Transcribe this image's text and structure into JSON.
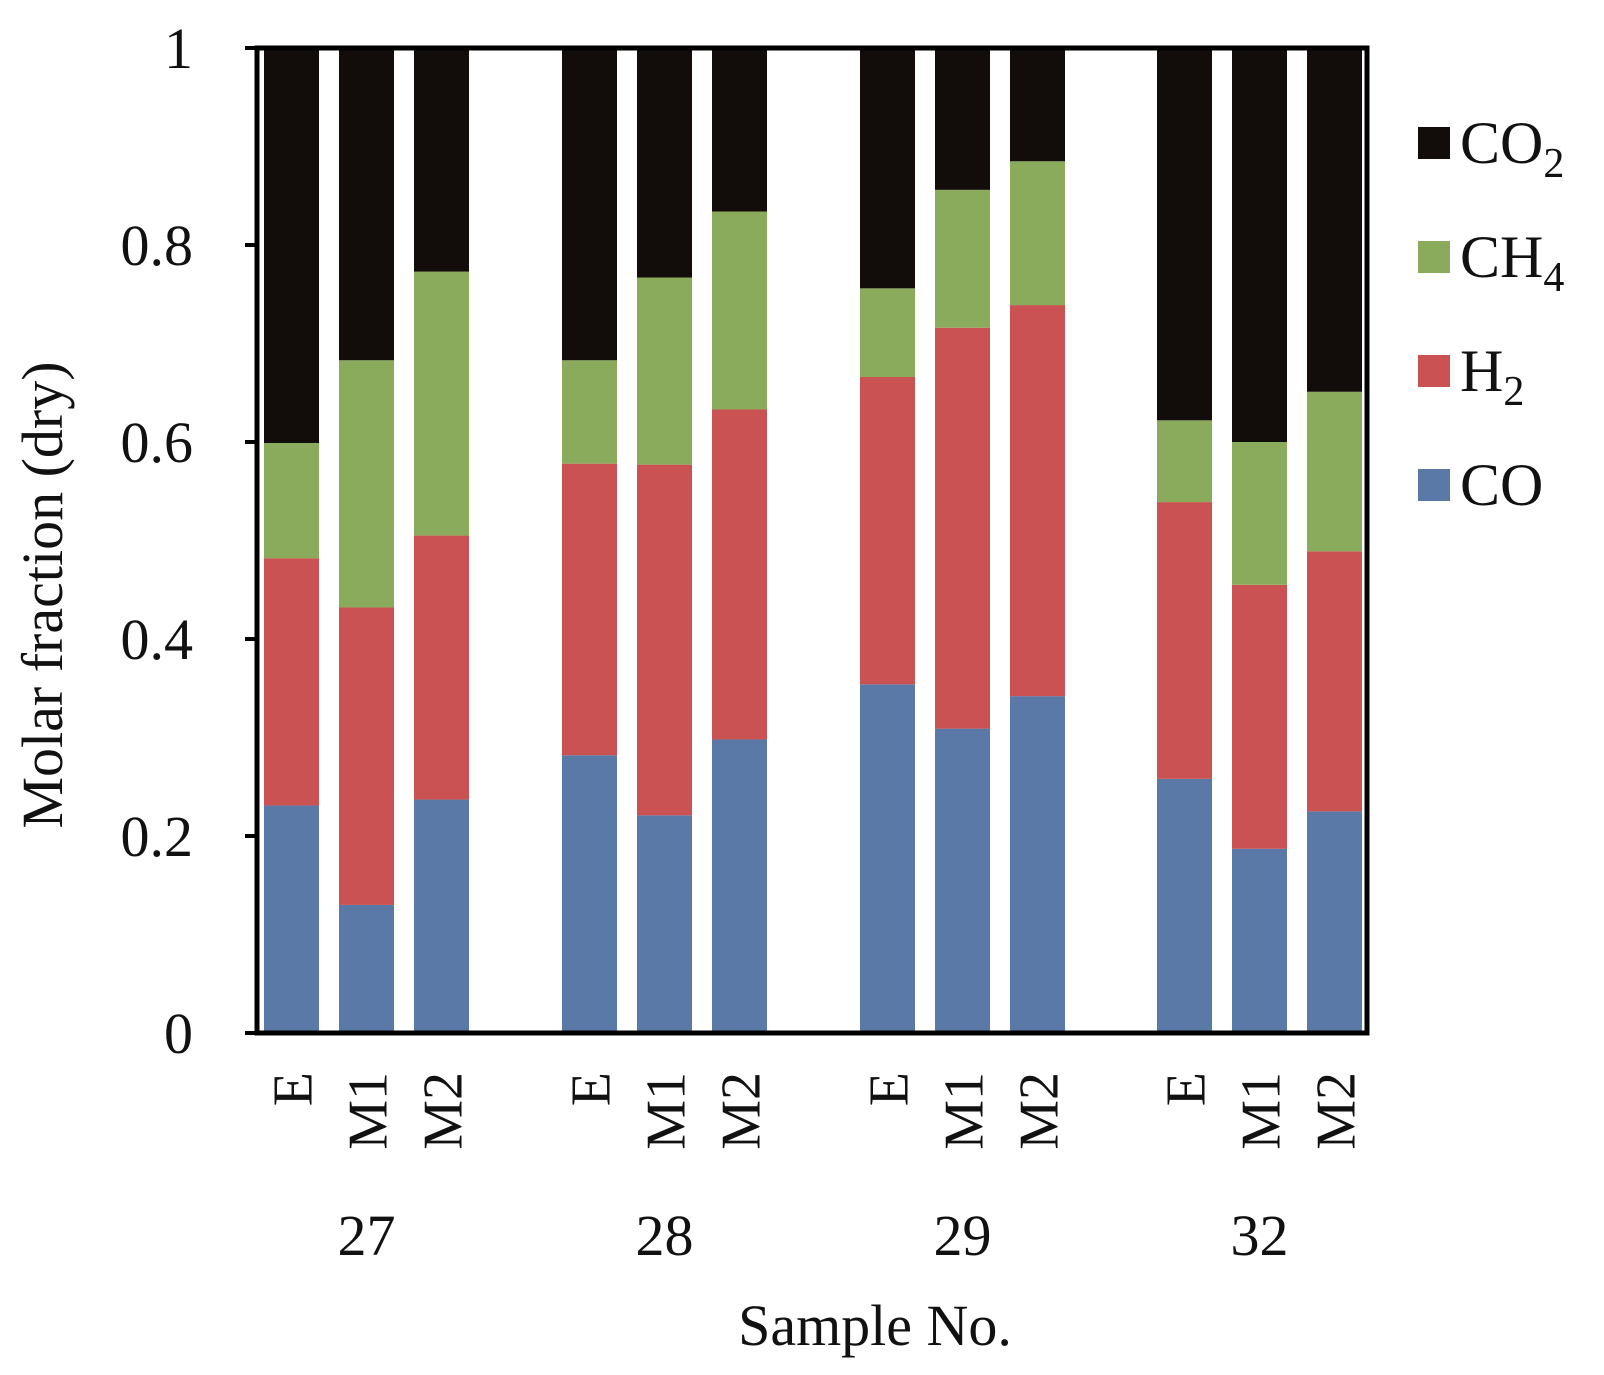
{
  "chart_data": {
    "type": "bar",
    "stacked": true,
    "ylabel": "Molar fraction (dry)",
    "xlabel": "Sample No.",
    "ylim": [
      0,
      1
    ],
    "yticks": [
      0,
      0.2,
      0.4,
      0.6,
      0.8,
      1
    ],
    "ytick_labels": [
      "0",
      "0.2",
      "0.4",
      "0.6",
      "0.8",
      "1"
    ],
    "groups": [
      {
        "name": "27",
        "categories": [
          "E",
          "M1",
          "M2"
        ]
      },
      {
        "name": "28",
        "categories": [
          "E",
          "M1",
          "M2"
        ]
      },
      {
        "name": "29",
        "categories": [
          "E",
          "M1",
          "M2"
        ]
      },
      {
        "name": "32",
        "categories": [
          "E",
          "M1",
          "M2"
        ]
      }
    ],
    "series": [
      {
        "name": "CO",
        "base": "CO",
        "sub": "",
        "color": "#5b79a6",
        "values": [
          0.231,
          0.13,
          0.237,
          0.282,
          0.221,
          0.298,
          0.354,
          0.309,
          0.342,
          0.258,
          0.187,
          0.225
        ]
      },
      {
        "name": "H2",
        "base": "H",
        "sub": "2",
        "color": "#cb5252",
        "values": [
          0.251,
          0.302,
          0.268,
          0.296,
          0.356,
          0.335,
          0.312,
          0.407,
          0.397,
          0.281,
          0.268,
          0.264
        ]
      },
      {
        "name": "CH4",
        "base": "CH",
        "sub": "4",
        "color": "#8aab5b",
        "values": [
          0.117,
          0.251,
          0.268,
          0.105,
          0.19,
          0.201,
          0.09,
          0.14,
          0.146,
          0.083,
          0.145,
          0.162
        ]
      },
      {
        "name": "CO2",
        "base": "CO",
        "sub": "2",
        "color": "#120d0b",
        "values": [
          0.401,
          0.317,
          0.227,
          0.317,
          0.233,
          0.166,
          0.244,
          0.144,
          0.115,
          0.378,
          0.4,
          0.349
        ]
      }
    ],
    "legend_order": [
      "CO2",
      "CH4",
      "H2",
      "CO"
    ],
    "legend_position": "right",
    "grid": false
  }
}
